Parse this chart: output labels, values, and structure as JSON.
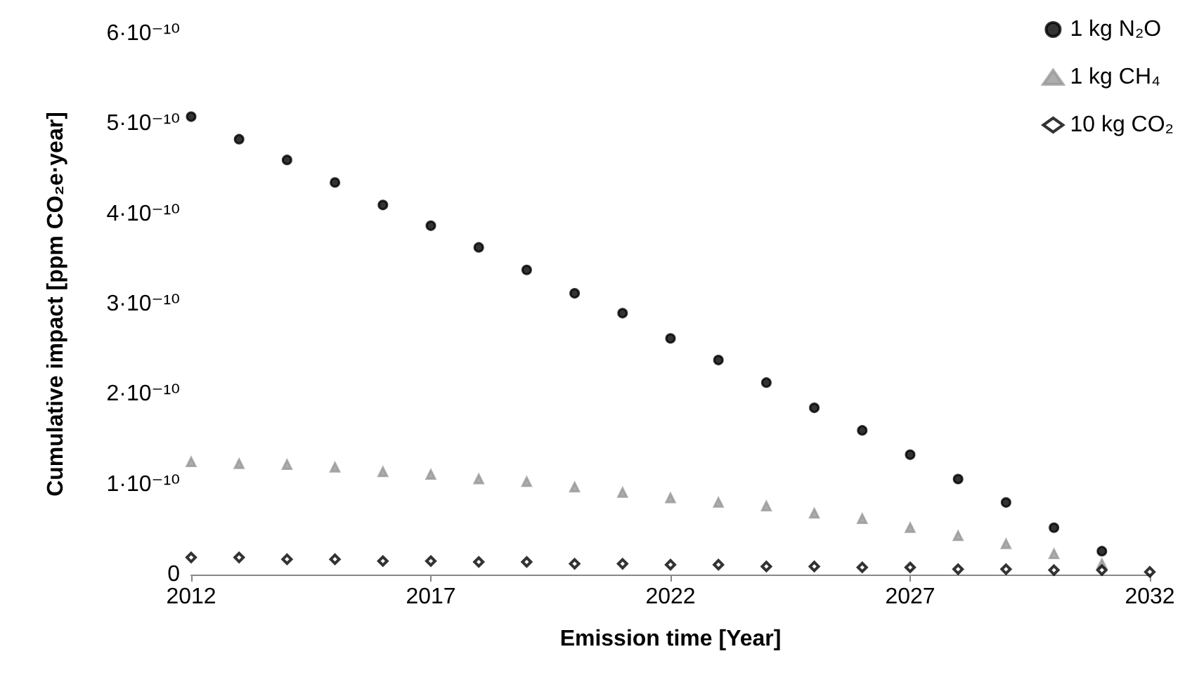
{
  "chart_data": {
    "type": "scatter",
    "xlabel": "Emission time [Year]",
    "ylabel": "Cumulative impact [ppm CO₂e·year]",
    "x": [
      2012,
      2013,
      2014,
      2015,
      2016,
      2017,
      2018,
      2019,
      2020,
      2021,
      2022,
      2023,
      2024,
      2025,
      2026,
      2027,
      2028,
      2029,
      2030,
      2031,
      2032
    ],
    "series": [
      {
        "name": "1 kg N₂O",
        "color": "#000000",
        "marker": "circle",
        "values": [
          5.08e-10,
          4.83e-10,
          4.6e-10,
          4.35e-10,
          4.1e-10,
          3.87e-10,
          3.63e-10,
          3.38e-10,
          3.12e-10,
          2.9e-10,
          2.62e-10,
          2.38e-10,
          2.13e-10,
          1.85e-10,
          1.6e-10,
          1.33e-10,
          1.06e-10,
          8e-11,
          5.2e-11,
          2.6e-11,
          null
        ]
      },
      {
        "name": "1 kg CH₄",
        "color": "#999999",
        "marker": "triangle",
        "values": [
          1.25e-10,
          1.23e-10,
          1.22e-10,
          1.19e-10,
          1.14e-10,
          1.11e-10,
          1.06e-10,
          1.03e-10,
          9.7e-11,
          9.1e-11,
          8.5e-11,
          8e-11,
          7.6e-11,
          6.8e-11,
          6.2e-11,
          5.2e-11,
          4.3e-11,
          3.4e-11,
          2.3e-11,
          1.2e-11,
          null
        ]
      },
      {
        "name": "10 kg CO₂",
        "color": "#000000",
        "marker": "diamond",
        "values": [
          1.9e-11,
          1.9e-11,
          1.7e-11,
          1.7e-11,
          1.5e-11,
          1.5e-11,
          1.4e-11,
          1.4e-11,
          1.2e-11,
          1.2e-11,
          1.1e-11,
          1.1e-11,
          9e-12,
          9e-12,
          8e-12,
          8e-12,
          6e-12,
          6e-12,
          5e-12,
          5e-12,
          3e-12
        ]
      }
    ],
    "xlim": [
      2012,
      2032
    ],
    "xticks": [
      2012,
      2017,
      2022,
      2027,
      2032
    ],
    "ylim": [
      0,
      6e-10
    ],
    "yticks": [
      {
        "value": 0,
        "label": "0"
      },
      {
        "value": 1e-10,
        "label": "1·10⁻¹⁰"
      },
      {
        "value": 2e-10,
        "label": "2·10⁻¹⁰"
      },
      {
        "value": 3e-10,
        "label": "3·10⁻¹⁰"
      },
      {
        "value": 4e-10,
        "label": "4·10⁻¹⁰"
      },
      {
        "value": 5e-10,
        "label": "5·10⁻¹⁰"
      },
      {
        "value": 6e-10,
        "label": "6·10⁻¹⁰"
      }
    ],
    "grid": false,
    "legend": "top right"
  }
}
